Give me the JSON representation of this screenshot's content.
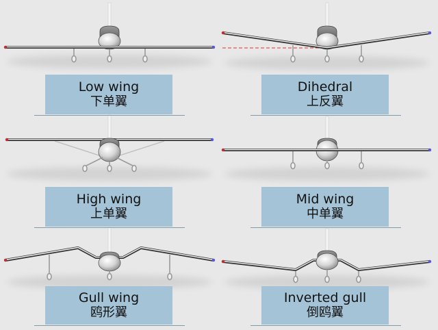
{
  "colors": {
    "background": "#e8e8e8",
    "label_box": "#a4c3d6",
    "wing_tip_left": "#c03030",
    "wing_tip_right": "#5a5ad8",
    "reference_line": "#e03030"
  },
  "panels": [
    {
      "id": "low-wing",
      "label_en": "Low wing",
      "label_zh": "下单翼"
    },
    {
      "id": "dihedral",
      "label_en": "Dihedral",
      "label_zh": "上反翼"
    },
    {
      "id": "high-wing",
      "label_en": "High wing",
      "label_zh": "上单翼"
    },
    {
      "id": "mid-wing",
      "label_en": "Mid wing",
      "label_zh": "中单翼"
    },
    {
      "id": "gull-wing",
      "label_en": "Gull wing",
      "label_zh": "鸥形翼"
    },
    {
      "id": "inverted-gull",
      "label_en": "Inverted gull",
      "label_zh": "倒鸥翼"
    }
  ]
}
